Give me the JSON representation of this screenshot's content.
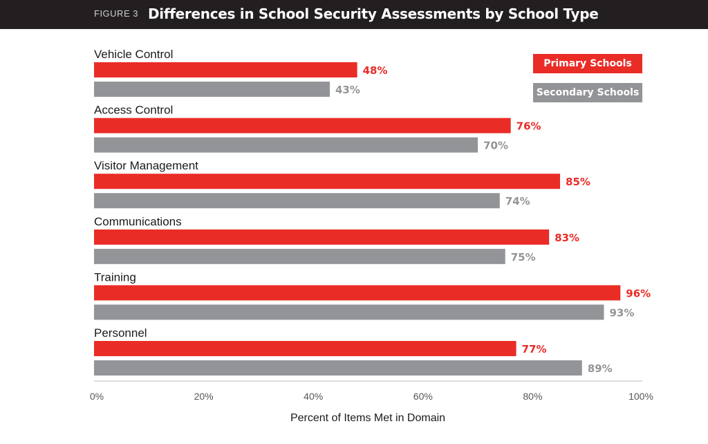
{
  "header": {
    "figure_label": "FIGURE 3",
    "title": "Differences in School Security Assessments by School Type"
  },
  "colors": {
    "primary": "#ea2c27",
    "secondary": "#939497",
    "header_bg": "#231f20"
  },
  "chart_data": {
    "type": "bar",
    "orientation": "horizontal",
    "categories": [
      "Vehicle Control",
      "Access Control",
      "Visitor Management",
      "Communications",
      "Training",
      "Personnel"
    ],
    "series": [
      {
        "name": "Primary Schools",
        "color": "#ea2c27",
        "values": [
          48,
          76,
          85,
          83,
          96,
          77
        ],
        "labels": [
          "48%",
          "76%",
          "85%",
          "83%",
          "96%",
          "77%"
        ]
      },
      {
        "name": "Secondary Schools",
        "color": "#939497",
        "values": [
          43,
          70,
          74,
          75,
          93,
          89
        ],
        "labels": [
          "43%",
          "70%",
          "74%",
          "75%",
          "93%",
          "89%"
        ]
      }
    ],
    "xlim": [
      0,
      100
    ],
    "xticks": [
      0,
      20,
      40,
      60,
      80,
      100
    ],
    "xtick_labels": [
      "0%",
      "20%",
      "40%",
      "60%",
      "80%",
      "100%"
    ],
    "xlabel": "Percent of Items Met in Domain",
    "legend_position": "top-right",
    "grid": false
  }
}
